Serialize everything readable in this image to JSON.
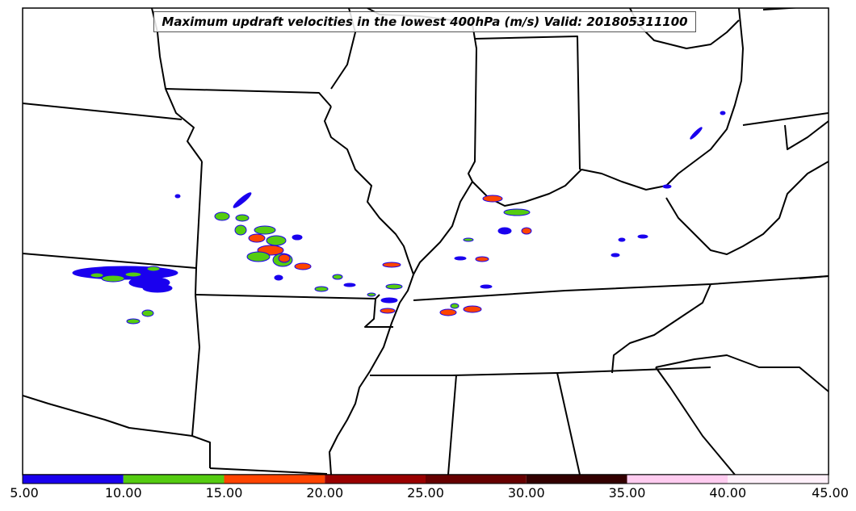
{
  "title": "Maximum updraft velocities in the lowest 400hPa (m/s) Valid: 201805311100",
  "colorbar": {
    "ticks": [
      "5.00",
      "10.00",
      "15.00",
      "20.00",
      "25.00",
      "30.00",
      "35.00",
      "40.00",
      "45.00"
    ],
    "bins": [
      {
        "from": 5,
        "to": 10,
        "color": "#1a00ee"
      },
      {
        "from": 10,
        "to": 15,
        "color": "#55cc11"
      },
      {
        "from": 15,
        "to": 20,
        "color": "#ff4400"
      },
      {
        "from": 20,
        "to": 25,
        "color": "#990000"
      },
      {
        "from": 25,
        "to": 30,
        "color": "#660000"
      },
      {
        "from": 30,
        "to": 35,
        "color": "#330000"
      },
      {
        "from": 35,
        "to": 40,
        "color": "#ffccf0"
      },
      {
        "from": 40,
        "to": 45,
        "color": "#fff0fa"
      }
    ]
  },
  "map": {
    "region": "Central / Southeastern United States",
    "boundary_color": "#000000",
    "background": "#ffffff"
  }
}
